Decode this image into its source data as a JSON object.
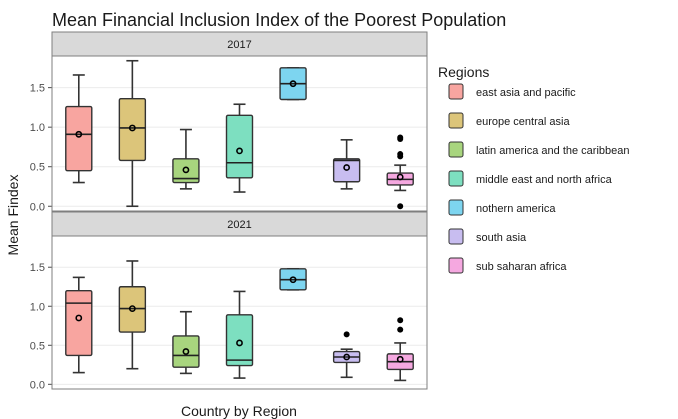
{
  "chart_data": {
    "type": "box",
    "title": "Mean Financial Inclusion Index of the Poorest Population",
    "xlabel": "Country by Region",
    "ylabel": "Mean Findex",
    "ylim": [
      -0.06,
      1.9
    ],
    "yticks": [
      0.0,
      0.5,
      1.0,
      1.5
    ],
    "ytick_labels": [
      "0.0",
      "0.5",
      "1.0",
      "1.5"
    ],
    "grid": true,
    "legend": {
      "title": "Regions",
      "placement": "right",
      "entries": [
        {
          "label": "east asia and pacific",
          "color": "#f8a5a0"
        },
        {
          "label": "europe central asia",
          "color": "#dcc57a"
        },
        {
          "label": "latin america and the caribbean",
          "color": "#a8d57e"
        },
        {
          "label": "middle east and north africa",
          "color": "#7ddfc0"
        },
        {
          "label": "nothern america",
          "color": "#7dd5f0"
        },
        {
          "label": "south asia",
          "color": "#c8bdf0"
        },
        {
          "label": "sub saharan africa",
          "color": "#f5a8e0"
        }
      ]
    },
    "panels": [
      {
        "label": "2017",
        "boxes": [
          {
            "region": "east asia and pacific",
            "min": 0.3,
            "q1": 0.45,
            "median": 0.91,
            "q3": 1.26,
            "max": 1.66,
            "mean": 0.91,
            "outliers": []
          },
          {
            "region": "europe central asia",
            "min": 0.0,
            "q1": 0.58,
            "median": 0.99,
            "q3": 1.36,
            "max": 1.84,
            "mean": 0.99,
            "outliers": []
          },
          {
            "region": "latin america and the caribbean",
            "min": 0.22,
            "q1": 0.3,
            "median": 0.35,
            "q3": 0.6,
            "max": 0.97,
            "mean": 0.46,
            "outliers": []
          },
          {
            "region": "middle east and north africa",
            "min": 0.18,
            "q1": 0.36,
            "median": 0.55,
            "q3": 1.15,
            "max": 1.29,
            "mean": 0.7,
            "outliers": []
          },
          {
            "region": "nothern america",
            "min": 1.35,
            "q1": 1.35,
            "median": 1.55,
            "q3": 1.75,
            "max": 1.75,
            "mean": 1.55,
            "outliers": []
          },
          {
            "region": "south asia",
            "min": 0.22,
            "q1": 0.31,
            "median": 0.58,
            "q3": 0.6,
            "max": 0.84,
            "mean": 0.49,
            "outliers": []
          },
          {
            "region": "sub saharan africa",
            "min": 0.2,
            "q1": 0.27,
            "median": 0.34,
            "q3": 0.42,
            "max": 0.52,
            "mean": 0.37,
            "outliers": [
              0.0,
              0.63,
              0.66,
              0.85,
              0.87
            ]
          }
        ]
      },
      {
        "label": "2021",
        "boxes": [
          {
            "region": "east asia and pacific",
            "min": 0.15,
            "q1": 0.37,
            "median": 1.04,
            "q3": 1.2,
            "max": 1.37,
            "mean": 0.85,
            "outliers": []
          },
          {
            "region": "europe central asia",
            "min": 0.2,
            "q1": 0.67,
            "median": 0.97,
            "q3": 1.25,
            "max": 1.58,
            "mean": 0.97,
            "outliers": []
          },
          {
            "region": "latin america and the caribbean",
            "min": 0.14,
            "q1": 0.22,
            "median": 0.37,
            "q3": 0.62,
            "max": 0.93,
            "mean": 0.42,
            "outliers": []
          },
          {
            "region": "middle east and north africa",
            "min": 0.08,
            "q1": 0.24,
            "median": 0.31,
            "q3": 0.89,
            "max": 1.19,
            "mean": 0.53,
            "outliers": []
          },
          {
            "region": "nothern america",
            "min": 1.21,
            "q1": 1.21,
            "median": 1.34,
            "q3": 1.48,
            "max": 1.48,
            "mean": 1.34,
            "outliers": []
          },
          {
            "region": "south asia",
            "min": 0.09,
            "q1": 0.28,
            "median": 0.35,
            "q3": 0.42,
            "max": 0.45,
            "mean": 0.35,
            "outliers": [
              0.64
            ]
          },
          {
            "region": "sub saharan africa",
            "min": 0.05,
            "q1": 0.19,
            "median": 0.29,
            "q3": 0.39,
            "max": 0.53,
            "mean": 0.32,
            "outliers": [
              0.7,
              0.82
            ]
          }
        ]
      }
    ]
  }
}
